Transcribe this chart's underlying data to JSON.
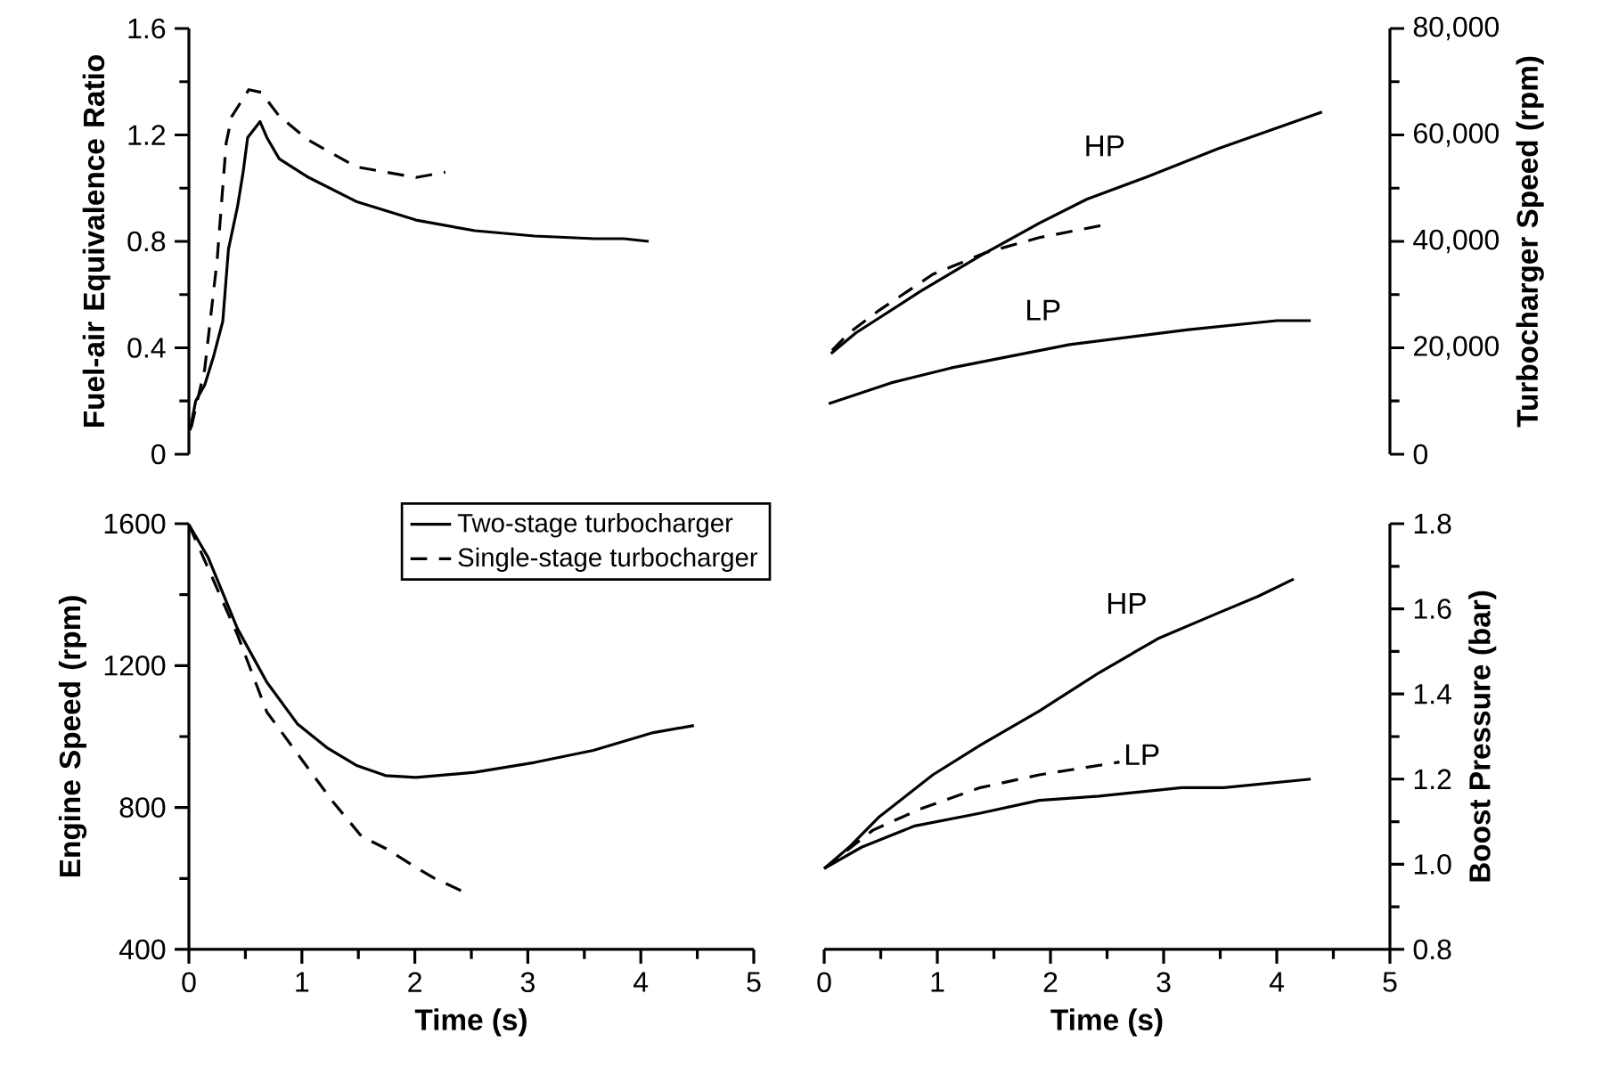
{
  "chart_data": [
    {
      "type": "line",
      "ylabel": "Fuel-air Equivalence Ratio",
      "xlim": [
        0,
        5
      ],
      "ylim": [
        0,
        1.6
      ],
      "yticks": [
        0,
        0.4,
        0.8,
        1.2,
        1.6
      ],
      "tick_labels": "y",
      "series": [
        {
          "color": "#000000",
          "line_style": "solid",
          "x": [
            0.01,
            0.06,
            0.14,
            0.22,
            0.3,
            0.35,
            0.43,
            0.48,
            0.52,
            0.63,
            0.69,
            0.8,
            1.06,
            1.48,
            2.01,
            2.53,
            3.06,
            3.59,
            3.85,
            4.07
          ],
          "values": [
            0.09,
            0.2,
            0.26,
            0.37,
            0.5,
            0.77,
            0.93,
            1.06,
            1.19,
            1.25,
            1.19,
            1.11,
            1.04,
            0.95,
            0.88,
            0.84,
            0.82,
            0.81,
            0.81,
            0.8
          ]
        },
        {
          "color": "#000000",
          "line_style": "dashed",
          "x": [
            0.02,
            0.14,
            0.25,
            0.33,
            0.38,
            0.53,
            0.64,
            0.8,
            1.06,
            1.48,
            2.01,
            2.27
          ],
          "values": [
            0.1,
            0.32,
            0.73,
            1.17,
            1.27,
            1.37,
            1.36,
            1.27,
            1.18,
            1.08,
            1.04,
            1.06
          ]
        }
      ]
    },
    {
      "type": "line",
      "y2label": "Turbocharger Speed (rpm)",
      "xlim": [
        0,
        5
      ],
      "y2lim": [
        0,
        80000
      ],
      "y2ticks": [
        0,
        {
          "value": 20000,
          "label": "20,000"
        },
        {
          "value": 40000,
          "label": "40,000"
        },
        {
          "value": 60000,
          "label": "60,000"
        },
        {
          "value": 80000,
          "label": "80,000"
        }
      ],
      "tick_labels": "y",
      "series": [
        {
          "name": "HP",
          "color": "#000000",
          "line_style": "solid",
          "axis": "y2",
          "x": [
            0.06,
            0.28,
            0.85,
            1.38,
            1.9,
            2.32,
            2.85,
            3.48,
            4.4
          ],
          "values": [
            18900,
            22800,
            30600,
            37300,
            43400,
            47900,
            52100,
            57400,
            64300
          ]
        },
        {
          "color": "#000000",
          "line_style": "dashed",
          "axis": "y2",
          "x": [
            0.07,
            0.22,
            0.49,
            0.96,
            1.43,
            1.9,
            2.48
          ],
          "values": [
            19500,
            22800,
            27100,
            33800,
            37900,
            40700,
            43100
          ]
        },
        {
          "name": "LP",
          "color": "#000000",
          "line_style": "solid",
          "axis": "y2",
          "x": [
            0.04,
            0.59,
            1.12,
            2.17,
            3.22,
            4.0,
            4.3
          ],
          "values": [
            9500,
            13400,
            16200,
            20600,
            23400,
            25100,
            25100
          ]
        }
      ]
    },
    {
      "type": "line",
      "xlabel": "Time (s)",
      "ylabel": "Engine Speed (rpm)",
      "xlim": [
        0,
        5
      ],
      "xticks": [
        0,
        1,
        2,
        3,
        4,
        5
      ],
      "ylim": [
        400,
        1600
      ],
      "yticks": [
        400,
        800,
        1200,
        1600
      ],
      "legend": "top",
      "series": [
        {
          "name": "Two-stage turbocharger",
          "color": "#000000",
          "line_style": "solid",
          "x": [
            0,
            0.17,
            0.43,
            0.69,
            0.96,
            1.22,
            1.48,
            1.74,
            2.01,
            2.53,
            3.06,
            3.58,
            4.11,
            4.47
          ],
          "values": [
            1597,
            1505,
            1304,
            1153,
            1036,
            969,
            919,
            890,
            885,
            899,
            927,
            961,
            1011,
            1031
          ]
        },
        {
          "name": "Single-stage turbocharger",
          "color": "#000000",
          "line_style": "dashed",
          "x": [
            0,
            0.14,
            0.43,
            0.69,
            0.96,
            1.27,
            1.53,
            1.74,
            2.01,
            2.17,
            2.42
          ],
          "values": [
            1597,
            1496,
            1287,
            1069,
            952,
            818,
            718,
            685,
            631,
            601,
            564
          ]
        }
      ]
    },
    {
      "type": "line",
      "xlabel": "Time (s)",
      "y2label": "Boost Pressure (bar)",
      "xlim": [
        0,
        5
      ],
      "xticks": [
        0,
        1,
        2,
        3,
        4,
        5
      ],
      "y2lim": [
        0.8,
        1.8
      ],
      "y2ticks": [
        0.8,
        {
          "value": 1.0,
          "label": "1.0"
        },
        1.2,
        1.4,
        1.6,
        1.8
      ],
      "series": [
        {
          "name": "HP",
          "color": "#000000",
          "line_style": "solid",
          "axis": "y2",
          "x": [
            0,
            0.22,
            0.48,
            0.96,
            1.38,
            1.9,
            2.43,
            2.95,
            3.48,
            3.84,
            4.15
          ],
          "values": [
            0.99,
            1.04,
            1.11,
            1.21,
            1.28,
            1.36,
            1.45,
            1.53,
            1.59,
            1.63,
            1.67
          ]
        },
        {
          "color": "#000000",
          "line_style": "dashed",
          "axis": "y2",
          "x": [
            0,
            0.43,
            0.85,
            1.38,
            1.9,
            2.61
          ],
          "values": [
            0.99,
            1.08,
            1.13,
            1.18,
            1.21,
            1.24
          ]
        },
        {
          "name": "LP",
          "color": "#000000",
          "line_style": "solid",
          "axis": "y2",
          "x": [
            0,
            0.33,
            0.8,
            1.38,
            1.9,
            2.43,
            3.16,
            3.53,
            4.3
          ],
          "values": [
            0.99,
            1.04,
            1.09,
            1.12,
            1.15,
            1.16,
            1.18,
            1.18,
            1.2
          ]
        }
      ]
    }
  ]
}
